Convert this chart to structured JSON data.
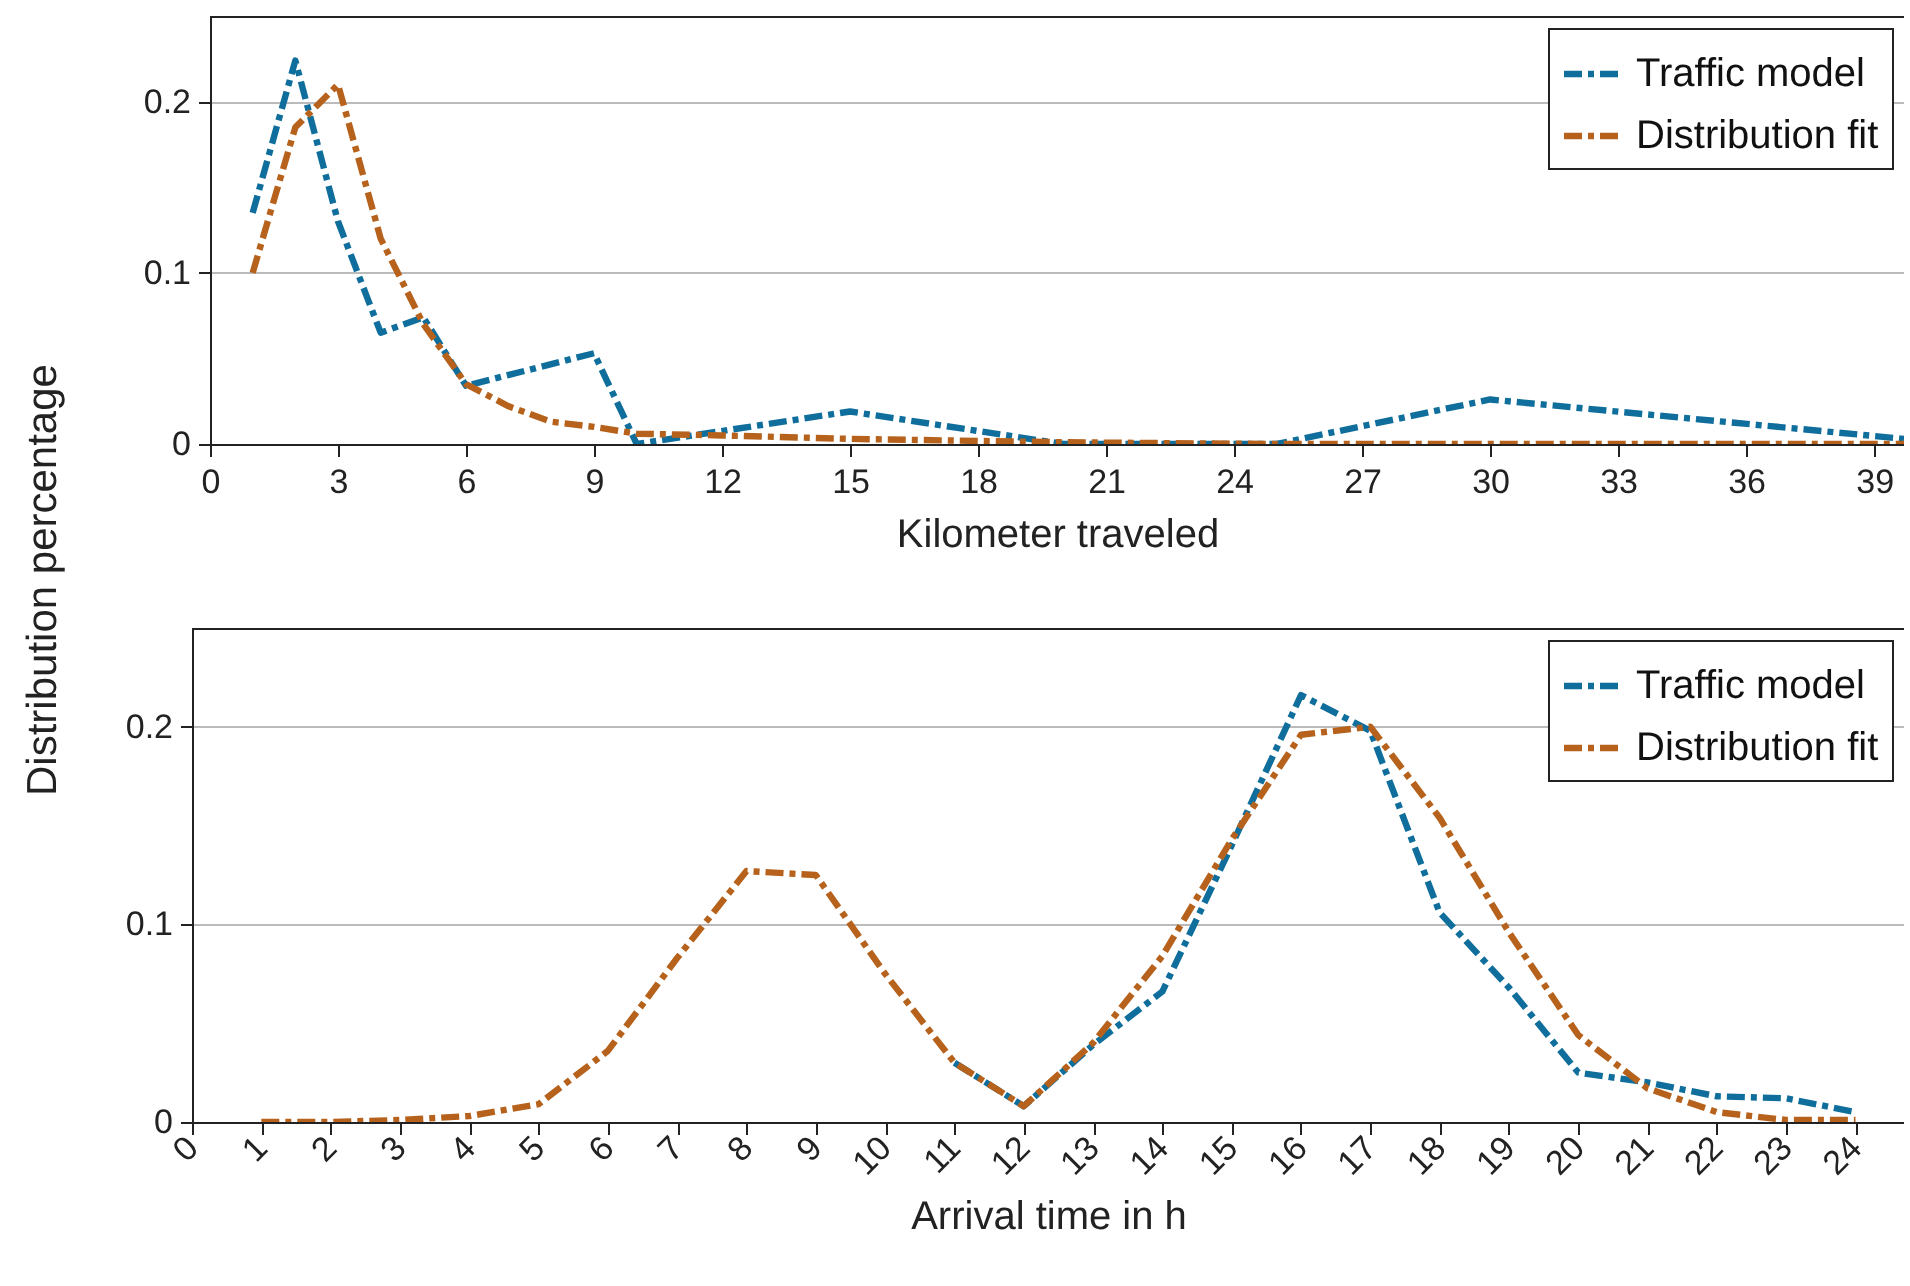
{
  "chart_data": [
    {
      "type": "line",
      "xlabel": "Kilometer traveled",
      "ylabel": "Distribution percentage",
      "xlim": [
        0,
        39.7
      ],
      "xticks": [
        0,
        3,
        6,
        9,
        12,
        15,
        18,
        21,
        24,
        27,
        30,
        33,
        36,
        39
      ],
      "ylim": [
        0,
        0.25
      ],
      "yticks": [
        0,
        0.1,
        0.2
      ],
      "grid": "y",
      "legend": "top right",
      "line_style": "dashed",
      "marker": "none",
      "series": [
        {
          "name": "Traffic model",
          "color": "#0f6e9b",
          "x": [
            1,
            2,
            3,
            4,
            5,
            6,
            9,
            10,
            15,
            20,
            25,
            30,
            39.7
          ],
          "values": [
            0.135,
            0.224,
            0.13,
            0.065,
            0.074,
            0.034,
            0.053,
            0,
            0.019,
            0,
            0,
            0.026,
            0.003
          ]
        },
        {
          "name": "Distribution fit",
          "color": "#b6621c",
          "x": [
            1,
            2,
            3,
            4,
            5,
            6,
            7,
            8,
            9,
            10,
            12,
            15,
            20,
            25,
            39.7
          ],
          "values": [
            0.1,
            0.185,
            0.21,
            0.12,
            0.07,
            0.035,
            0.022,
            0.013,
            0.01,
            0.006,
            0.005,
            0.003,
            0.001,
            0,
            0
          ]
        }
      ]
    },
    {
      "type": "line",
      "xlabel": "Arrival time in h",
      "xlim": [
        0,
        24.7
      ],
      "xticks": [
        0,
        1,
        2,
        3,
        4,
        5,
        6,
        7,
        8,
        9,
        10,
        11,
        12,
        13,
        14,
        15,
        16,
        17,
        18,
        19,
        20,
        21,
        22,
        23,
        24
      ],
      "ylim": [
        0,
        0.25
      ],
      "yticks": [
        0,
        0.1,
        0.2
      ],
      "grid": "y",
      "legend": "top right",
      "line_style": "dashed",
      "marker": "none",
      "series": [
        {
          "name": "Traffic model",
          "color": "#0f6e9b",
          "x": [
            11,
            12,
            13,
            14,
            15,
            16,
            17,
            18,
            19,
            20,
            21,
            22,
            23,
            24
          ],
          "values": [
            0.03,
            0.008,
            0.039,
            0.066,
            0.14,
            0.216,
            0.198,
            0.106,
            0.068,
            0.025,
            0.02,
            0.013,
            0.012,
            0.005
          ]
        },
        {
          "name": "Distribution fit",
          "color": "#b6621c",
          "x": [
            1,
            2,
            3,
            4,
            5,
            6,
            7,
            8,
            9,
            10,
            11,
            12,
            13,
            14,
            15,
            16,
            17,
            18,
            19,
            20,
            21,
            22,
            23,
            24
          ],
          "values": [
            0,
            0,
            0.001,
            0.003,
            0.009,
            0.036,
            0.083,
            0.127,
            0.125,
            0.075,
            0.03,
            0.008,
            0.04,
            0.084,
            0.143,
            0.196,
            0.2,
            0.154,
            0.096,
            0.044,
            0.017,
            0.005,
            0.001,
            0.001
          ]
        }
      ]
    }
  ]
}
